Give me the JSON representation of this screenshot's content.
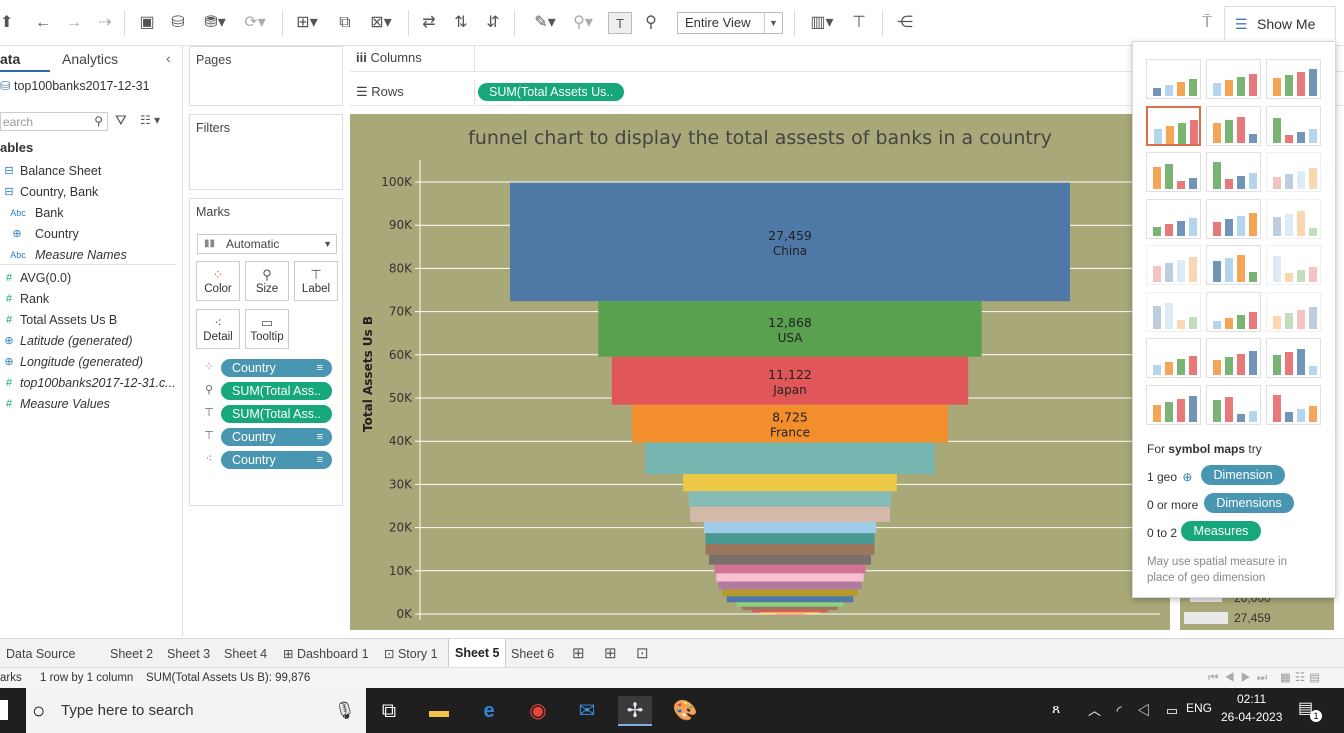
{
  "toolbar": {
    "view_mode": "Entire View",
    "show_me_label": "Show Me"
  },
  "data_pane": {
    "tab_data": "ata",
    "tab_analytics": "Analytics",
    "datasource": "top100banks2017-12-31",
    "search_placeholder": "earch",
    "tables_header": "ables",
    "fields": [
      {
        "icon": "table-icon",
        "label": "Balance Sheet",
        "style": "normal"
      },
      {
        "icon": "table-icon",
        "label": "Country, Bank",
        "style": "normal"
      },
      {
        "icon": "abc-icon",
        "label": "Bank",
        "style": "normal"
      },
      {
        "icon": "globe-icon",
        "label": "Country",
        "style": "normal"
      },
      {
        "icon": "abc-icon",
        "label": "Measure Names",
        "style": "italic"
      },
      {
        "icon": "hash-icon",
        "label": "AVG(0.0)",
        "style": "normal"
      },
      {
        "icon": "hash-icon",
        "label": "Rank",
        "style": "normal"
      },
      {
        "icon": "hash-icon",
        "label": "Total Assets Us B",
        "style": "normal"
      },
      {
        "icon": "globe-icon",
        "label": "Latitude (generated)",
        "style": "italic"
      },
      {
        "icon": "globe-icon",
        "label": "Longitude (generated)",
        "style": "italic"
      },
      {
        "icon": "hash-icon",
        "label": "top100banks2017-12-31.c...",
        "style": "italic"
      },
      {
        "icon": "hash-icon",
        "label": "Measure Values",
        "style": "italic"
      }
    ]
  },
  "cards": {
    "pages": "Pages",
    "filters": "Filters",
    "marks": "Marks",
    "mark_type": "Automatic",
    "buttons": {
      "color": "Color",
      "size": "Size",
      "label": "Label",
      "detail": "Detail",
      "tooltip": "Tooltip"
    },
    "mark_pills": [
      {
        "icon": "color-icon",
        "label": "Country",
        "color": "blue"
      },
      {
        "icon": "size-icon",
        "label": "SUM(Total Ass..",
        "color": "green"
      },
      {
        "icon": "label-icon",
        "label": "SUM(Total Ass..",
        "color": "green"
      },
      {
        "icon": "label-icon",
        "label": "Country",
        "color": "blue"
      },
      {
        "icon": "detail-icon",
        "label": "Country",
        "color": "blue"
      }
    ]
  },
  "shelves": {
    "columns_label": "Columns",
    "rows_label": "Rows",
    "rows_pill": "SUM(Total Assets Us.."
  },
  "chart_data": {
    "type": "bar",
    "title": "funnel chart to display the total assests  of banks in a country",
    "ylabel": "Total Assets Us B",
    "ylim": [
      0,
      100000
    ],
    "yticks": [
      "0K",
      "10K",
      "20K",
      "30K",
      "40K",
      "50K",
      "60K",
      "70K",
      "80K",
      "90K",
      "100K"
    ],
    "cumulative_total": 99876,
    "segments": [
      {
        "country": "China",
        "value": 27459,
        "label": "27,459",
        "color": "#4e79a7",
        "labeled": true
      },
      {
        "country": "USA",
        "value": 12868,
        "label": "12,868",
        "color": "#59a14f",
        "labeled": true
      },
      {
        "country": "Japan",
        "value": 11122,
        "label": "11,122",
        "color": "#e15759",
        "labeled": true
      },
      {
        "country": "France",
        "value": 8725,
        "label": "8,725",
        "color": "#f28e2b",
        "labeled": true
      },
      {
        "country": "",
        "value": 7300,
        "color": "#76b7b2",
        "labeled": false
      },
      {
        "country": "",
        "value": 4000,
        "color": "#edc948",
        "labeled": false
      },
      {
        "country": "",
        "value": 3600,
        "color": "#86bcb6",
        "labeled": false
      },
      {
        "country": "",
        "value": 3500,
        "color": "#d4b9a8",
        "labeled": false
      },
      {
        "country": "",
        "value": 2600,
        "color": "#a0cbe8",
        "labeled": false
      },
      {
        "country": "",
        "value": 2500,
        "color": "#499894",
        "labeled": false
      },
      {
        "country": "",
        "value": 2500,
        "color": "#9c755f",
        "labeled": false
      },
      {
        "country": "",
        "value": 2300,
        "color": "#79706e",
        "labeled": false
      },
      {
        "country": "",
        "value": 2000,
        "color": "#d37295",
        "labeled": false
      },
      {
        "country": "",
        "value": 1900,
        "color": "#fabfd2",
        "labeled": false
      },
      {
        "country": "",
        "value": 1800,
        "color": "#b07aa1",
        "labeled": false
      },
      {
        "country": "",
        "value": 1600,
        "color": "#b6992d",
        "labeled": false
      },
      {
        "country": "",
        "value": 1400,
        "color": "#4e79a7",
        "labeled": false
      },
      {
        "country": "",
        "value": 1000,
        "color": "#8cd17d",
        "labeled": false
      },
      {
        "country": "",
        "value": 800,
        "color": "#9d7660",
        "labeled": false
      },
      {
        "country": "",
        "value": 500,
        "color": "#e15759",
        "labeled": false
      },
      {
        "country": "",
        "value": 300,
        "color": "#f1ce63",
        "labeled": false
      },
      {
        "country": "",
        "value": 76,
        "color": "#ff9d9a",
        "labeled": false
      }
    ],
    "legend_fragment": [
      "20,000",
      "27,459"
    ]
  },
  "show_me": {
    "for_text": "For",
    "for_bold": "symbol maps",
    "for_tail": "try",
    "rows": [
      {
        "prefix": "1 geo",
        "pill": "Dimension",
        "color": "blue"
      },
      {
        "prefix": "0 or more",
        "pill": "Dimensions",
        "color": "blue"
      },
      {
        "prefix": "0 to 2",
        "pill": "Measures",
        "color": "green"
      }
    ],
    "note": "May use spatial measure in place of geo dimension"
  },
  "sheet_tabs": [
    {
      "label": "Data Source",
      "icon": "datasource-icon",
      "active": false
    },
    {
      "label": "Sheet 2",
      "icon": "",
      "active": false
    },
    {
      "label": "Sheet 3",
      "icon": "",
      "active": false
    },
    {
      "label": "Sheet 4",
      "icon": "",
      "active": false
    },
    {
      "label": "Dashboard 1",
      "icon": "dashboard-icon",
      "active": false
    },
    {
      "label": "Story 1",
      "icon": "story-icon",
      "active": false
    },
    {
      "label": "Sheet 5",
      "icon": "",
      "active": true
    },
    {
      "label": "Sheet 6",
      "icon": "",
      "active": false
    }
  ],
  "status": {
    "marks": "arks",
    "dims": "1 row by 1 column",
    "sum": "SUM(Total Assets Us B): 99,876"
  },
  "taskbar": {
    "search_placeholder": "Type here to search",
    "lang": "ENG",
    "time": "02:11",
    "date": "26-04-2023",
    "notif_count": "1"
  }
}
